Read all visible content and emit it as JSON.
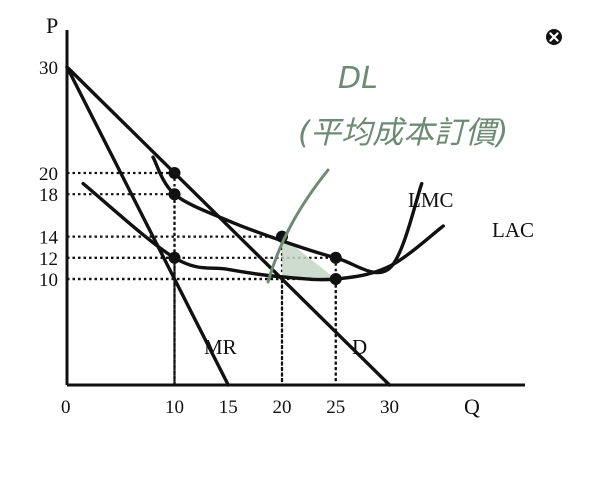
{
  "close_icon": "close-icon",
  "chart_data": {
    "type": "line",
    "title": "",
    "xlabel": "Q",
    "ylabel": "P",
    "xlim": [
      0,
      33
    ],
    "ylim": [
      0,
      32
    ],
    "origin_label": "0",
    "x_ticks": [
      {
        "value": 10,
        "label": "10"
      },
      {
        "value": 15,
        "label": "15"
      },
      {
        "value": 20,
        "label": "20"
      },
      {
        "value": 25,
        "label": "25"
      },
      {
        "value": 30,
        "label": "30"
      }
    ],
    "y_ticks": [
      {
        "value": 30,
        "label": "30"
      },
      {
        "value": 20,
        "label": "20"
      },
      {
        "value": 18,
        "label": "18"
      },
      {
        "value": 14,
        "label": "14"
      },
      {
        "value": 12,
        "label": "12"
      },
      {
        "value": 10,
        "label": "10"
      }
    ],
    "series": [
      {
        "name": "D",
        "kind": "line",
        "x": [
          0,
          30
        ],
        "y": [
          30,
          0
        ]
      },
      {
        "name": "MR",
        "kind": "line",
        "x": [
          0,
          15
        ],
        "y": [
          30,
          0
        ]
      },
      {
        "name": "LMC",
        "kind": "curve",
        "x": [
          8,
          10,
          15,
          20,
          25,
          30,
          33
        ],
        "y": [
          21.5,
          18,
          15.5,
          13.6,
          12,
          11,
          19
        ]
      },
      {
        "name": "LAC",
        "kind": "curve",
        "x": [
          1.5,
          10,
          15,
          20,
          25,
          30,
          35
        ],
        "y": [
          19,
          12,
          10.9,
          10.2,
          10,
          11.2,
          15
        ]
      }
    ],
    "points": [
      {
        "x": 10,
        "y": 20
      },
      {
        "x": 10,
        "y": 18
      },
      {
        "x": 10,
        "y": 12
      },
      {
        "x": 20,
        "y": 14
      },
      {
        "x": 25,
        "y": 12
      },
      {
        "x": 25,
        "y": 10
      }
    ],
    "guides": [
      {
        "x": 10,
        "y": 20
      },
      {
        "x": 10,
        "y": 18
      },
      {
        "x": 10,
        "y": 12
      },
      {
        "x": 20,
        "y": 14
      },
      {
        "x": 25,
        "y": 12
      },
      {
        "x": 20,
        "y": 10
      },
      {
        "x": 25,
        "y": 10
      }
    ],
    "shaded_region": [
      [
        20,
        14
      ],
      [
        20,
        10
      ],
      [
        25,
        10
      ]
    ],
    "annotations": {
      "dl": "DL",
      "dl_note": "(平均成本訂價)"
    },
    "colors": {
      "curves": "#111111",
      "shade": "#c4d6c6",
      "handwriting": "#6e8a75"
    }
  }
}
